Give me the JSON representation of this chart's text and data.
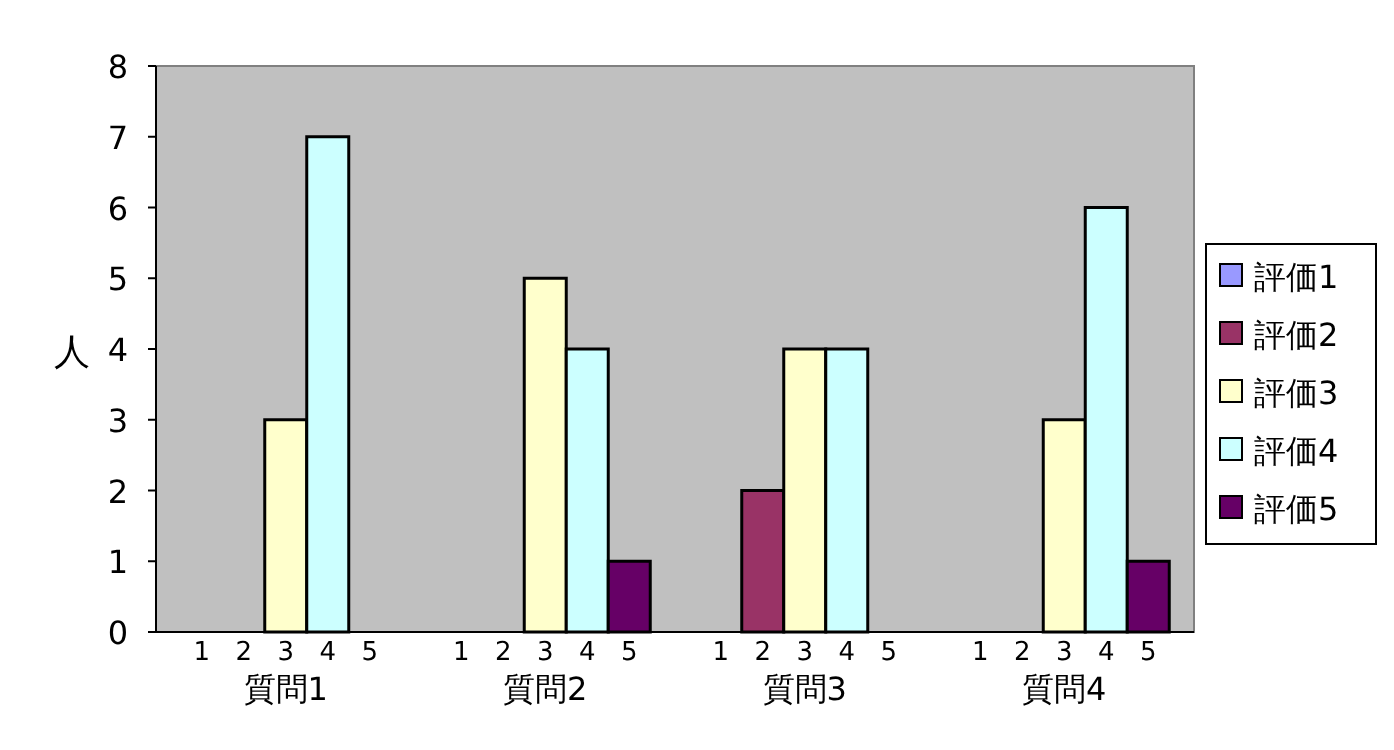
{
  "chart_data": {
    "type": "bar",
    "ylabel": "人",
    "categories": [
      "質問1",
      "質問2",
      "質問3",
      "質問4"
    ],
    "series": [
      {
        "name": "評価1",
        "color": "#9999ff",
        "values": [
          0,
          0,
          0,
          0
        ]
      },
      {
        "name": "評価2",
        "color": "#993366",
        "values": [
          0,
          0,
          2,
          0
        ]
      },
      {
        "name": "評価3",
        "color": "#ffffcc",
        "values": [
          3,
          5,
          4,
          3
        ]
      },
      {
        "name": "評価4",
        "color": "#ccffff",
        "values": [
          7,
          4,
          4,
          6
        ]
      },
      {
        "name": "評価5",
        "color": "#660066",
        "values": [
          0,
          1,
          0,
          1
        ]
      }
    ],
    "annotations": [
      "1",
      "2",
      "3",
      "4",
      "5"
    ],
    "ylim": [
      0,
      8
    ],
    "yticks": [
      0,
      1,
      2,
      3,
      4,
      5,
      6,
      7,
      8
    ],
    "grid": false,
    "legend": "right"
  }
}
